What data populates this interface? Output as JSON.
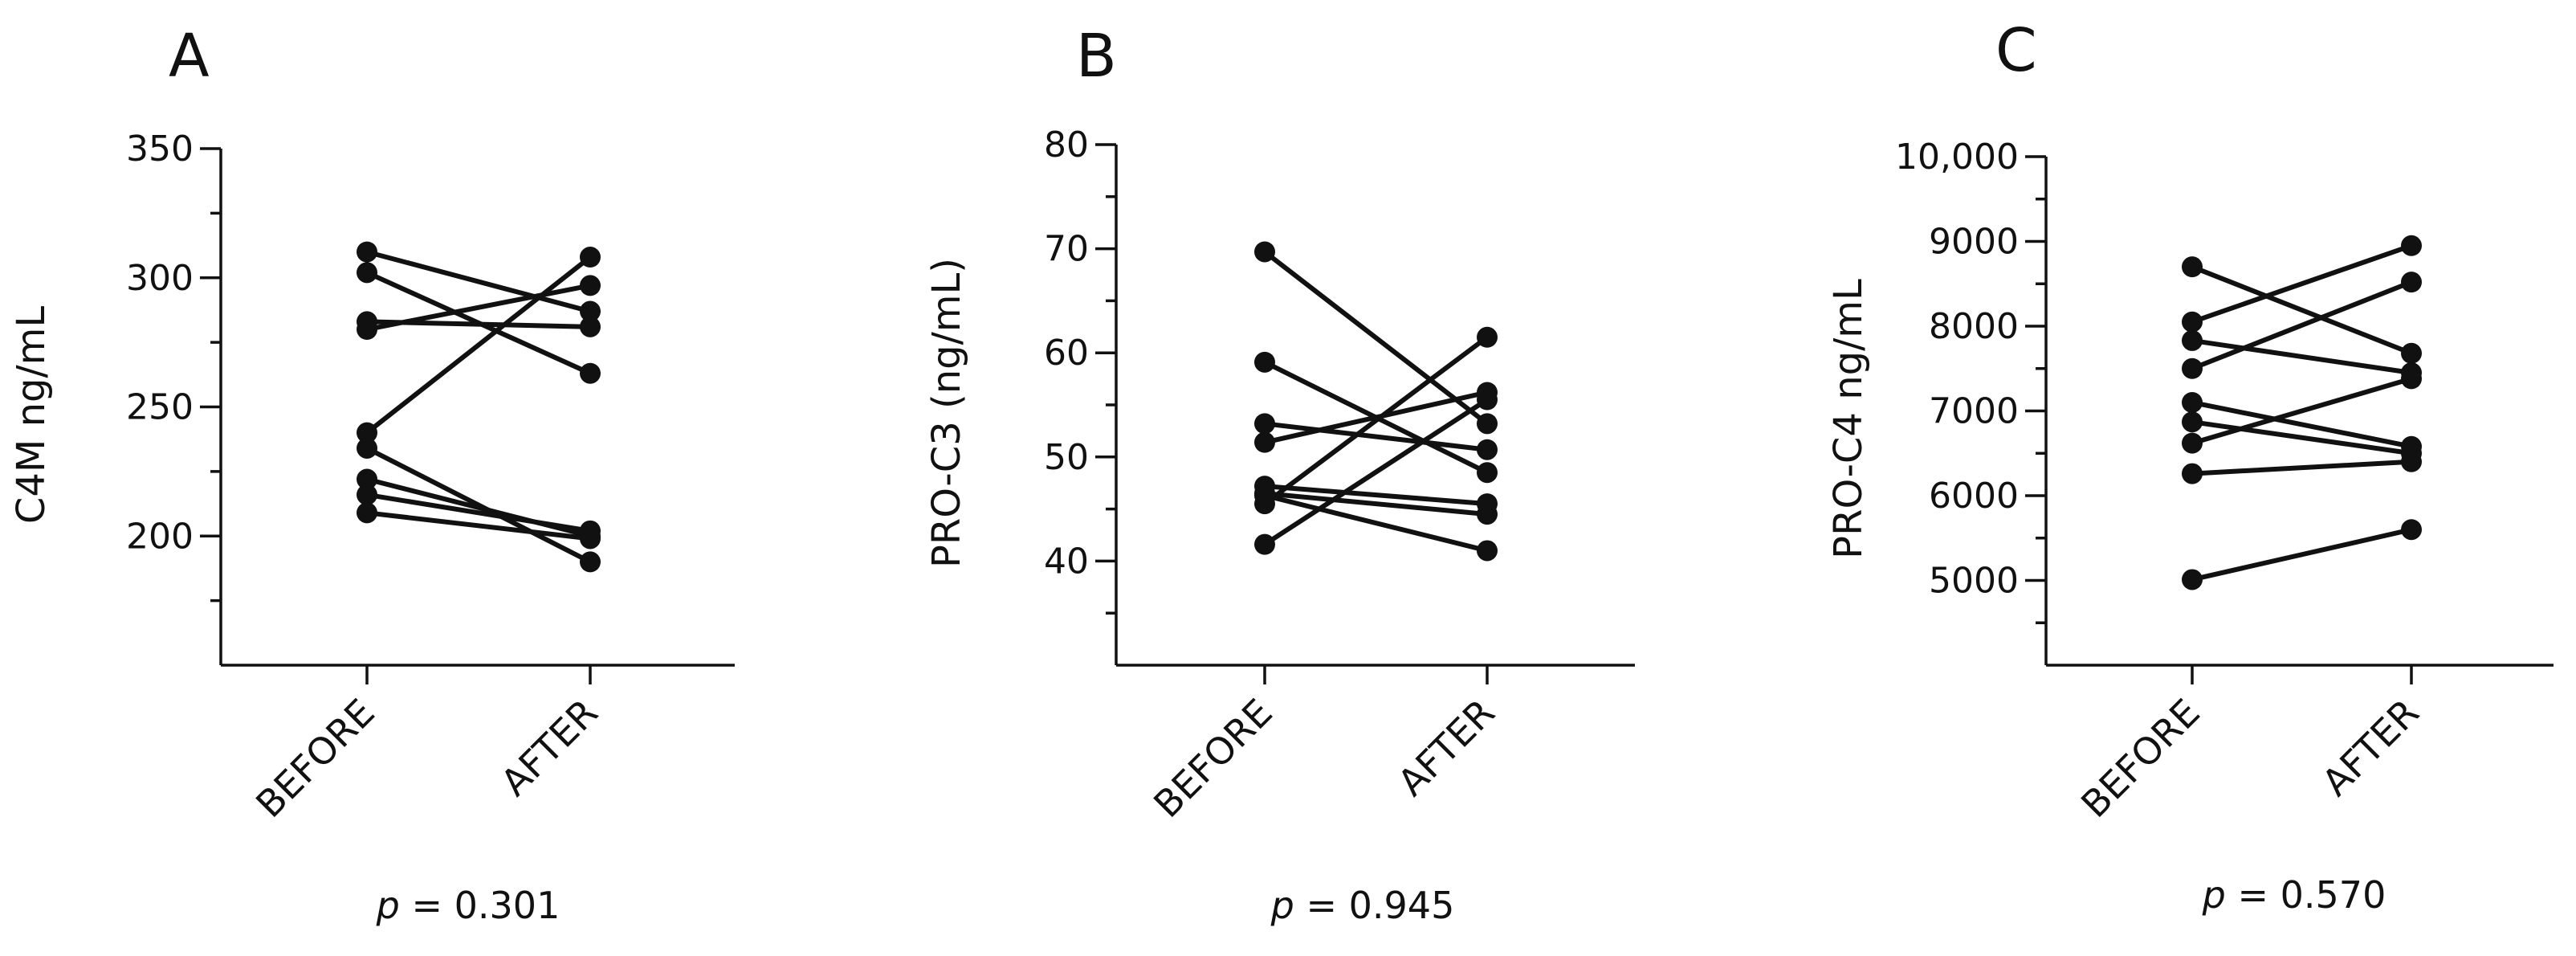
{
  "chart_data": [
    {
      "type": "line",
      "panel_label": "A",
      "ylabel": "C4M ng/mL",
      "categories": [
        "BEFORE",
        "AFTER"
      ],
      "ylim": [
        150,
        350
      ],
      "yticks": [
        200,
        250,
        300,
        350
      ],
      "ytick_labels": [
        "200",
        "250",
        "300",
        "350"
      ],
      "minor_step": 25,
      "p_prefix": "p",
      "p_value": "= 0.301",
      "series": [
        {
          "values": [
            310,
            287
          ]
        },
        {
          "values": [
            302,
            263
          ]
        },
        {
          "values": [
            283,
            281
          ]
        },
        {
          "values": [
            280,
            297
          ]
        },
        {
          "values": [
            240,
            308
          ]
        },
        {
          "values": [
            234,
            190
          ]
        },
        {
          "values": [
            222,
            200
          ]
        },
        {
          "values": [
            216,
            202
          ]
        },
        {
          "values": [
            209,
            199
          ]
        }
      ]
    },
    {
      "type": "line",
      "panel_label": "B",
      "ylabel": "PRO-C3 (ng/mL)",
      "categories": [
        "BEFORE",
        "AFTER"
      ],
      "ylim": [
        30,
        80
      ],
      "yticks": [
        40,
        50,
        60,
        70,
        80
      ],
      "ytick_labels": [
        "40",
        "50",
        "60",
        "70",
        "80"
      ],
      "minor_step": 5,
      "p_prefix": "p",
      "p_value": "= 0.945",
      "series": [
        {
          "values": [
            69.7,
            53.2
          ]
        },
        {
          "values": [
            59.1,
            48.5
          ]
        },
        {
          "values": [
            53.2,
            50.7
          ]
        },
        {
          "values": [
            51.4,
            56.2
          ]
        },
        {
          "values": [
            47.2,
            45.5
          ]
        },
        {
          "values": [
            46.3,
            41.0
          ]
        },
        {
          "values": [
            45.5,
            61.5
          ]
        },
        {
          "values": [
            41.6,
            55.5
          ]
        },
        {
          "values": [
            46.5,
            44.5
          ]
        }
      ]
    },
    {
      "type": "line",
      "panel_label": "C",
      "ylabel": "PRO-C4 ng/mL",
      "categories": [
        "BEFORE",
        "AFTER"
      ],
      "ylim": [
        4000,
        10000
      ],
      "yticks": [
        5000,
        6000,
        7000,
        8000,
        9000,
        10000
      ],
      "ytick_labels": [
        "5000",
        "6000",
        "7000",
        "8000",
        "9000",
        "10,000"
      ],
      "minor_step": 500,
      "p_prefix": "p",
      "p_value": "= 0.570",
      "series": [
        {
          "values": [
            8700,
            7680
          ]
        },
        {
          "values": [
            8050,
            8950
          ]
        },
        {
          "values": [
            7830,
            7450
          ]
        },
        {
          "values": [
            7500,
            8520
          ]
        },
        {
          "values": [
            7100,
            6580
          ]
        },
        {
          "values": [
            6870,
            6500
          ]
        },
        {
          "values": [
            6620,
            7380
          ]
        },
        {
          "values": [
            6260,
            6400
          ]
        },
        {
          "values": [
            5010,
            5600
          ]
        }
      ]
    }
  ]
}
